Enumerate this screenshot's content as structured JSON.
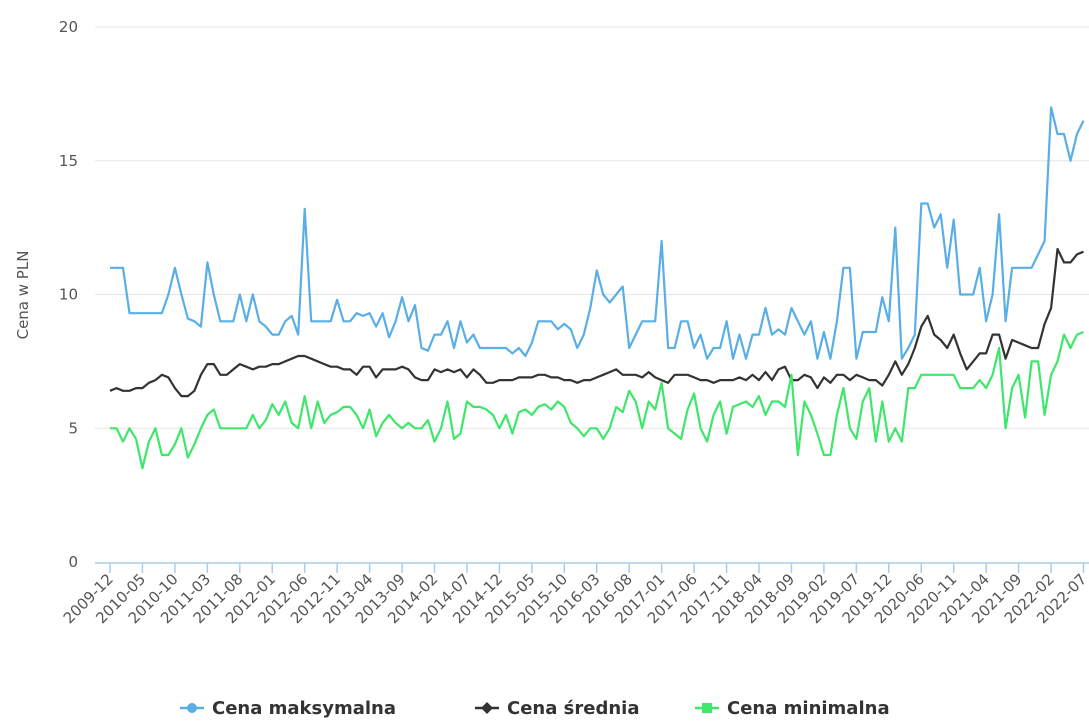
{
  "chart_data": {
    "type": "line",
    "y_label": "Cena w PLN",
    "categories": [
      "2009-12",
      null,
      null,
      null,
      null,
      "2010-05",
      null,
      null,
      null,
      null,
      "2010-10",
      null,
      null,
      null,
      null,
      "2011-03",
      null,
      null,
      null,
      null,
      "2011-08",
      null,
      null,
      null,
      null,
      "2012-01",
      null,
      null,
      null,
      null,
      "2012-06",
      null,
      null,
      null,
      null,
      "2012-11",
      null,
      null,
      null,
      null,
      "2013-04",
      null,
      null,
      null,
      null,
      "2013-09",
      null,
      null,
      null,
      null,
      "2014-02",
      null,
      null,
      null,
      null,
      "2014-07",
      null,
      null,
      null,
      null,
      "2014-12",
      null,
      null,
      null,
      null,
      "2015-05",
      null,
      null,
      null,
      null,
      "2015-10",
      null,
      null,
      null,
      null,
      "2016-03",
      null,
      null,
      null,
      null,
      "2016-08",
      null,
      null,
      null,
      null,
      "2017-01",
      null,
      null,
      null,
      null,
      "2017-06",
      null,
      null,
      null,
      null,
      "2017-11",
      null,
      null,
      null,
      null,
      "2018-04",
      null,
      null,
      null,
      null,
      "2018-09",
      null,
      null,
      null,
      null,
      "2019-02",
      null,
      null,
      null,
      null,
      "2019-07",
      null,
      null,
      null,
      null,
      "2019-12",
      null,
      null,
      null,
      null,
      "2020-06",
      null,
      null,
      null,
      null,
      "2020-11",
      null,
      null,
      null,
      null,
      "2021-04",
      null,
      null,
      null,
      null,
      "2021-09",
      null,
      null,
      null,
      null,
      "2022-02",
      null,
      null,
      null,
      null,
      "2022-07"
    ],
    "series": [
      {
        "name": "Cena maksymalna",
        "color": "#5aaee6",
        "marker": "circle",
        "values": [
          11,
          11,
          11,
          9.3,
          9.3,
          9.3,
          9.3,
          9.3,
          9.3,
          10,
          11,
          10,
          9.1,
          9,
          8.8,
          11.2,
          10,
          9,
          9,
          9,
          10,
          9,
          10,
          9,
          8.8,
          8.5,
          8.5,
          9,
          9.2,
          8.5,
          13.2,
          9,
          9,
          9,
          9,
          9.8,
          9,
          9,
          9.3,
          9.2,
          9.3,
          8.8,
          9.3,
          8.4,
          9,
          9.9,
          9,
          9.6,
          8,
          7.9,
          8.5,
          8.5,
          9,
          8,
          9,
          8.2,
          8.5,
          8,
          8,
          8,
          8,
          8,
          7.8,
          8,
          7.7,
          8.2,
          9,
          9,
          9,
          8.7,
          8.9,
          8.7,
          8,
          8.5,
          9.5,
          10.9,
          10,
          9.7,
          10,
          10.3,
          8,
          8.5,
          9,
          9,
          9,
          12,
          8,
          8,
          9,
          9,
          8,
          8.5,
          7.6,
          8,
          8,
          9,
          7.6,
          8.5,
          7.6,
          8.5,
          8.5,
          9.5,
          8.5,
          8.7,
          8.5,
          9.5,
          9,
          8.5,
          9,
          7.6,
          8.6,
          7.6,
          9,
          11,
          11,
          7.6,
          8.6,
          8.6,
          8.6,
          9.9,
          9,
          12.5,
          7.6,
          8,
          8.5,
          13.4,
          13.4,
          12.5,
          13,
          11,
          12.8,
          10,
          10,
          10,
          11,
          9,
          10,
          13,
          9,
          11,
          11,
          11,
          11,
          11.5,
          12,
          17,
          16,
          16,
          15,
          16,
          16.5
        ]
      },
      {
        "name": "Cena średnia",
        "color": "#333333",
        "marker": "diamond",
        "values": [
          6.4,
          6.5,
          6.4,
          6.4,
          6.5,
          6.5,
          6.7,
          6.8,
          7,
          6.9,
          6.5,
          6.2,
          6.2,
          6.4,
          7,
          7.4,
          7.4,
          7,
          7,
          7.2,
          7.4,
          7.3,
          7.2,
          7.3,
          7.3,
          7.4,
          7.4,
          7.5,
          7.6,
          7.7,
          7.7,
          7.6,
          7.5,
          7.4,
          7.3,
          7.3,
          7.2,
          7.2,
          7,
          7.3,
          7.3,
          6.9,
          7.2,
          7.2,
          7.2,
          7.3,
          7.2,
          6.9,
          6.8,
          6.8,
          7.2,
          7.1,
          7.2,
          7.1,
          7.2,
          6.9,
          7.2,
          7,
          6.7,
          6.7,
          6.8,
          6.8,
          6.8,
          6.9,
          6.9,
          6.9,
          7,
          7,
          6.9,
          6.9,
          6.8,
          6.8,
          6.7,
          6.8,
          6.8,
          6.9,
          7,
          7.1,
          7.2,
          7,
          7,
          7,
          6.9,
          7.1,
          6.9,
          6.8,
          6.7,
          7,
          7,
          7,
          6.9,
          6.8,
          6.8,
          6.7,
          6.8,
          6.8,
          6.8,
          6.9,
          6.8,
          7,
          6.8,
          7.1,
          6.8,
          7.2,
          7.3,
          6.8,
          6.8,
          7,
          6.9,
          6.5,
          6.9,
          6.7,
          7,
          7,
          6.8,
          7,
          6.9,
          6.8,
          6.8,
          6.6,
          7,
          7.5,
          7,
          7.4,
          8,
          8.8,
          9.2,
          8.5,
          8.3,
          8,
          8.5,
          7.8,
          7.2,
          7.5,
          7.8,
          7.8,
          8.5,
          8.5,
          7.6,
          8.3,
          8.2,
          8.1,
          8,
          8,
          8.9,
          9.5,
          11.7,
          11.2,
          11.2,
          11.5,
          11.6
        ]
      },
      {
        "name": "Cena minimalna",
        "color": "#3ee66a",
        "marker": "square",
        "values": [
          5,
          5,
          4.5,
          5,
          4.6,
          3.5,
          4.5,
          5,
          4,
          4,
          4.4,
          5,
          3.9,
          4.4,
          5,
          5.5,
          5.7,
          5,
          5,
          5,
          5,
          5,
          5.5,
          5,
          5.3,
          5.9,
          5.5,
          6,
          5.2,
          5,
          6.2,
          5,
          6,
          5.2,
          5.5,
          5.6,
          5.8,
          5.8,
          5.5,
          5,
          5.7,
          4.7,
          5.2,
          5.5,
          5.2,
          5,
          5.2,
          5,
          5,
          5.3,
          4.5,
          5,
          6,
          4.6,
          4.8,
          6,
          5.8,
          5.8,
          5.7,
          5.5,
          5,
          5.5,
          4.8,
          5.6,
          5.7,
          5.5,
          5.8,
          5.9,
          5.7,
          6,
          5.8,
          5.2,
          5,
          4.7,
          5,
          5,
          4.6,
          5,
          5.8,
          5.6,
          6.4,
          6,
          5,
          6,
          5.7,
          6.7,
          5,
          4.8,
          4.6,
          5.7,
          6.3,
          5,
          4.5,
          5.5,
          6,
          4.8,
          5.8,
          5.9,
          6,
          5.8,
          6.2,
          5.5,
          6,
          6,
          5.8,
          7,
          4,
          6,
          5.5,
          4.8,
          4,
          4,
          5.5,
          6.5,
          5,
          4.6,
          6,
          6.5,
          4.5,
          6,
          4.5,
          5,
          4.5,
          6.5,
          6.5,
          7,
          7,
          7,
          7,
          7,
          7,
          6.5,
          6.5,
          6.5,
          6.8,
          6.5,
          7,
          8,
          5,
          6.5,
          7,
          5.4,
          7.5,
          7.5,
          5.5,
          7,
          7.5,
          8.5,
          8,
          8.5,
          8.6
        ]
      }
    ],
    "ylim": [
      0,
      20
    ],
    "yticks": [
      0,
      5,
      10,
      15,
      20
    ],
    "grid": true,
    "legend": "bottom"
  }
}
